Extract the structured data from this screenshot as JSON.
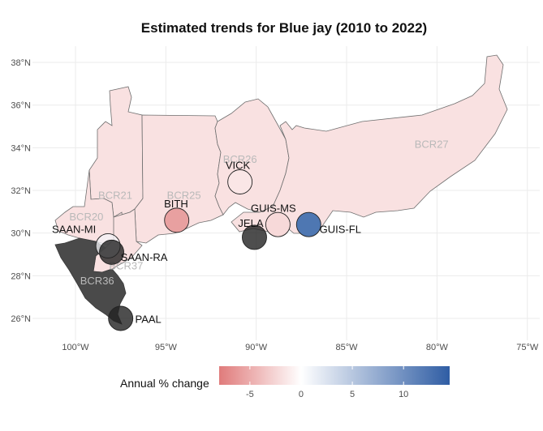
{
  "title": "Estimated trends for Blue jay (2010 to 2022)",
  "axes": {
    "x_ticks": [
      {
        "value": -100,
        "label": "100°W"
      },
      {
        "value": -95,
        "label": "95°W"
      },
      {
        "value": -90,
        "label": "90°W"
      },
      {
        "value": -85,
        "label": "85°W"
      },
      {
        "value": -80,
        "label": "80°W"
      },
      {
        "value": -75,
        "label": "75°W"
      }
    ],
    "y_ticks": [
      {
        "value": 26,
        "label": "26°N"
      },
      {
        "value": 28,
        "label": "28°N"
      },
      {
        "value": 30,
        "label": "30°N"
      },
      {
        "value": 32,
        "label": "32°N"
      },
      {
        "value": 34,
        "label": "34°N"
      },
      {
        "value": 36,
        "label": "36°N"
      },
      {
        "value": 38,
        "label": "38°N"
      }
    ],
    "grid": true
  },
  "regions": [
    {
      "name": "BCR21",
      "lon": -97.8,
      "lat": 31.6
    },
    {
      "name": "BCR25",
      "lon": -94.0,
      "lat": 31.6
    },
    {
      "name": "BCR26",
      "lon": -90.9,
      "lat": 33.3
    },
    {
      "name": "BCR27",
      "lon": -80.3,
      "lat": 34.0
    },
    {
      "name": "BCR20",
      "lon": -99.4,
      "lat": 30.6
    },
    {
      "name": "BCR37",
      "lon": -97.2,
      "lat": 28.3
    },
    {
      "name": "BCR36",
      "lon": -98.8,
      "lat": 27.6
    }
  ],
  "sites": [
    {
      "name": "SAAN-MI",
      "lon": -98.2,
      "lat": 29.4,
      "label_lon": -101.3,
      "label_lat": 30.0,
      "color": "#f3f3f7",
      "opacity": 0.75
    },
    {
      "name": "SAAN-RA",
      "lon": -98.0,
      "lat": 29.1,
      "label_lon": -97.5,
      "label_lat": 28.7,
      "color": "#222222",
      "opacity": 0.8
    },
    {
      "name": "PAAL",
      "lon": -97.5,
      "lat": 26.0,
      "label_lon": -96.7,
      "label_lat": 25.8,
      "color": "#222222",
      "opacity": 0.8
    },
    {
      "name": "BITH",
      "lon": -94.4,
      "lat": 30.6,
      "label_lon": -95.1,
      "label_lat": 31.2,
      "color": "#e8a0a0",
      "opacity": 1
    },
    {
      "name": "VICK",
      "lon": -90.9,
      "lat": 32.4,
      "label_lon": -91.7,
      "label_lat": 33.0,
      "color": "#fae6e6",
      "opacity": 1
    },
    {
      "name": "GUIS-MS",
      "lon": -88.8,
      "lat": 30.4,
      "label_lon": -90.3,
      "label_lat": 31.0,
      "color": "#f7d9d9",
      "opacity": 1
    },
    {
      "name": "JELA",
      "lon": -90.1,
      "lat": 29.8,
      "label_lon": -91.0,
      "label_lat": 30.3,
      "color": "#222222",
      "opacity": 0.8
    },
    {
      "name": "GUIS-FL",
      "lon": -87.1,
      "lat": 30.4,
      "label_lon": -86.5,
      "label_lat": 30.0,
      "color": "#4e77b2",
      "opacity": 1
    }
  ],
  "legend": {
    "title": "Annual % change",
    "ticks": [
      {
        "value": -5,
        "label": "-5"
      },
      {
        "value": 0,
        "label": "0"
      },
      {
        "value": 5,
        "label": "5"
      },
      {
        "value": 10,
        "label": "10"
      }
    ],
    "range": [
      -8,
      14.5
    ],
    "low_color": "#e07b7b",
    "mid_color": "#ffffff",
    "high_color": "#2f5da4"
  },
  "colors": {
    "land_fill": "#f9e1e1",
    "land_stroke": "#6e6e6e",
    "coast_fill": "#4a4a4a",
    "grid": "#ebebeb"
  }
}
